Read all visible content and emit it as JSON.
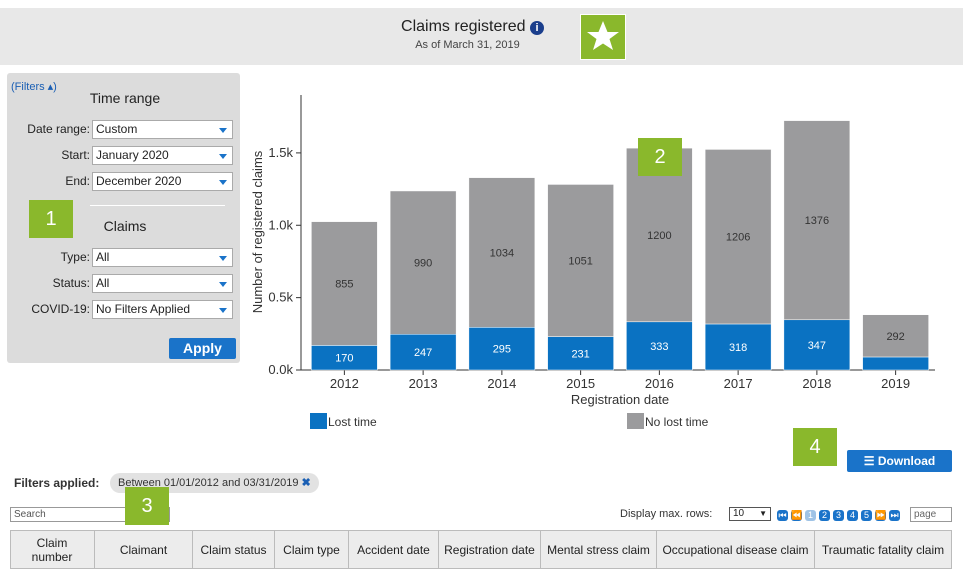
{
  "header": {
    "title": "Claims registered",
    "subtitle": "As of March 31, 2019"
  },
  "filters": {
    "toggle": "(Filters ▴)",
    "time_heading": "Time range",
    "date_range_label": "Date range:",
    "date_range_value": "Custom",
    "start_label": "Start:",
    "start_value": "January 2020",
    "end_label": "End:",
    "end_value": "December 2020",
    "claims_heading": "Claims",
    "type_label": "Type:",
    "type_value": "All",
    "status_label": "Status:",
    "status_value": "All",
    "covid_label": "COVID-19:",
    "covid_value": "No Filters Applied",
    "apply": "Apply"
  },
  "markers": [
    "1",
    "2",
    "3",
    "4"
  ],
  "chart_data": {
    "type": "stacked_bar",
    "x_label": "Registration date",
    "y_label": "Number of registered claims",
    "categories": [
      "2012",
      "2013",
      "2014",
      "2015",
      "2016",
      "2017",
      "2018",
      "2019"
    ],
    "series": [
      {
        "name": "Lost time",
        "color": "#0a72c2",
        "values": [
          170,
          247,
          295,
          231,
          333,
          318,
          347,
          90
        ]
      },
      {
        "name": "No lost time",
        "color": "#9b9b9d",
        "values": [
          855,
          990,
          1034,
          1051,
          1200,
          1206,
          1376,
          292
        ]
      }
    ],
    "ylim": [
      0,
      1900
    ],
    "yticks": [
      {
        "value": 0,
        "label": "0.0k"
      },
      {
        "value": 500,
        "label": "0.5k"
      },
      {
        "value": 1000,
        "label": "1.0k"
      },
      {
        "value": 1500,
        "label": "1.5k"
      }
    ]
  },
  "download": "Download",
  "applied": {
    "label": "Filters applied:",
    "chip": "Between 01/01/2012 and 03/31/2019"
  },
  "search_placeholder": "Search",
  "pager": {
    "rows_label": "Display max. rows:",
    "rows_value": "10",
    "pages": [
      "1",
      "2",
      "3",
      "4",
      "5"
    ],
    "page_placeholder": "page"
  },
  "table": {
    "columns": [
      "Claim number",
      "Claimant",
      "Claim status",
      "Claim type",
      "Accident date",
      "Registration date",
      "Mental stress claim",
      "Occupational disease claim",
      "Traumatic fatality claim"
    ]
  }
}
